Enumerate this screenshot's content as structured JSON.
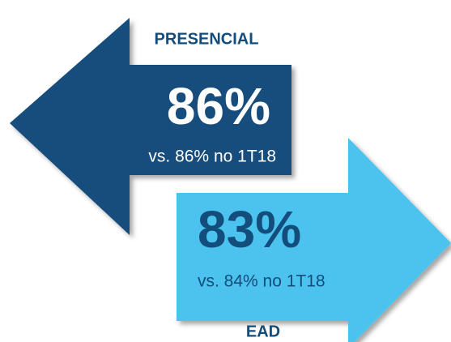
{
  "items": [
    {
      "label": "PRESENCIAL",
      "value": "86%",
      "comparison": "vs. 86% no 1T18"
    },
    {
      "label": "EAD",
      "value": "83%",
      "comparison": "vs. 84% no 1T18"
    }
  ]
}
